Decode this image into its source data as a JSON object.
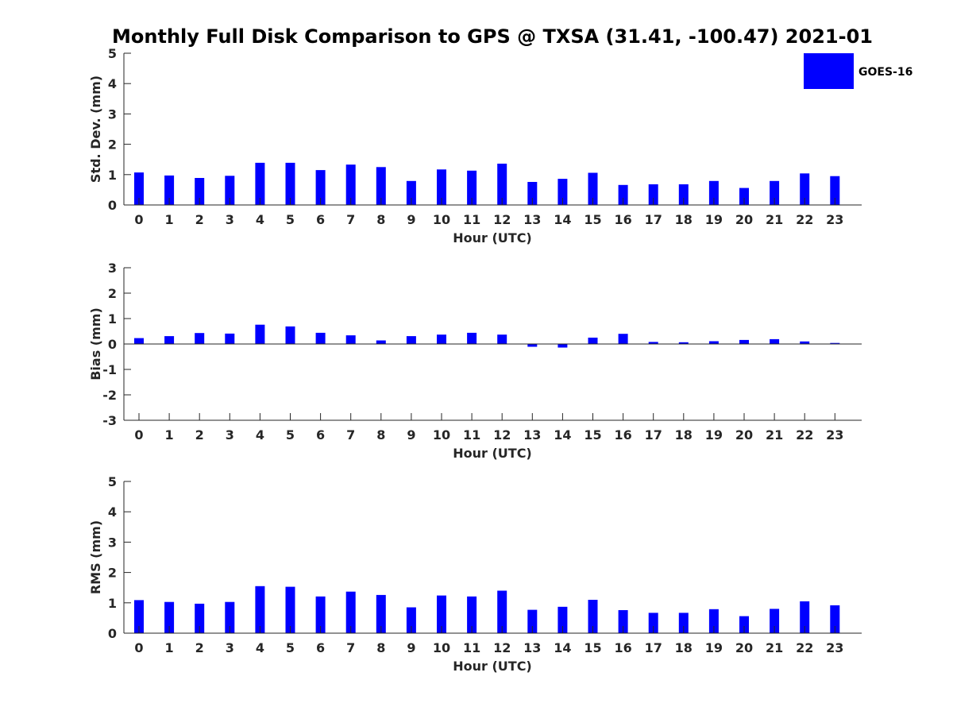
{
  "title": "Monthly Full Disk Comparison to GPS @ TXSA (31.41, -100.47) 2021-01",
  "legend": {
    "label": "GOES-16",
    "color": "#0000ff"
  },
  "chart_data": [
    {
      "type": "bar",
      "xlabel": "Hour (UTC)",
      "ylabel": "Std. Dev. (mm)",
      "categories": [
        "0",
        "1",
        "2",
        "3",
        "4",
        "5",
        "6",
        "7",
        "8",
        "9",
        "10",
        "11",
        "12",
        "13",
        "14",
        "15",
        "16",
        "17",
        "18",
        "19",
        "20",
        "21",
        "22",
        "23"
      ],
      "ylim": [
        0,
        5
      ],
      "yticks": [
        "0",
        "1",
        "2",
        "3",
        "4",
        "5"
      ],
      "series": [
        {
          "name": "GOES-16",
          "color": "#0000ff",
          "values": [
            1.07,
            0.97,
            0.89,
            0.96,
            1.39,
            1.39,
            1.15,
            1.33,
            1.25,
            0.79,
            1.17,
            1.13,
            1.36,
            0.76,
            0.86,
            1.06,
            0.66,
            0.68,
            0.68,
            0.79,
            0.56,
            0.79,
            1.04,
            0.95
          ]
        }
      ]
    },
    {
      "type": "bar",
      "xlabel": "Hour (UTC)",
      "ylabel": "Bias (mm)",
      "categories": [
        "0",
        "1",
        "2",
        "3",
        "4",
        "5",
        "6",
        "7",
        "8",
        "9",
        "10",
        "11",
        "12",
        "13",
        "14",
        "15",
        "16",
        "17",
        "18",
        "19",
        "20",
        "21",
        "22",
        "23"
      ],
      "ylim": [
        -3,
        3
      ],
      "yticks": [
        "-3",
        "-2",
        "-1",
        "0",
        "1",
        "2",
        "3"
      ],
      "series": [
        {
          "name": "GOES-16",
          "color": "#0000ff",
          "values": [
            0.23,
            0.31,
            0.43,
            0.41,
            0.76,
            0.69,
            0.44,
            0.34,
            0.14,
            0.31,
            0.37,
            0.44,
            0.37,
            -0.11,
            -0.14,
            0.25,
            0.4,
            0.08,
            0.07,
            0.11,
            0.16,
            0.19,
            0.1,
            0.04
          ]
        }
      ]
    },
    {
      "type": "bar",
      "xlabel": "Hour (UTC)",
      "ylabel": "RMS (mm)",
      "categories": [
        "0",
        "1",
        "2",
        "3",
        "4",
        "5",
        "6",
        "7",
        "8",
        "9",
        "10",
        "11",
        "12",
        "13",
        "14",
        "15",
        "16",
        "17",
        "18",
        "19",
        "20",
        "21",
        "22",
        "23"
      ],
      "ylim": [
        0,
        5
      ],
      "yticks": [
        "0",
        "1",
        "2",
        "3",
        "4",
        "5"
      ],
      "series": [
        {
          "name": "GOES-16",
          "color": "#0000ff",
          "values": [
            1.09,
            1.03,
            0.97,
            1.03,
            1.55,
            1.53,
            1.21,
            1.37,
            1.26,
            0.85,
            1.24,
            1.21,
            1.4,
            0.77,
            0.87,
            1.1,
            0.76,
            0.67,
            0.67,
            0.79,
            0.56,
            0.8,
            1.05,
            0.92
          ]
        }
      ]
    }
  ]
}
